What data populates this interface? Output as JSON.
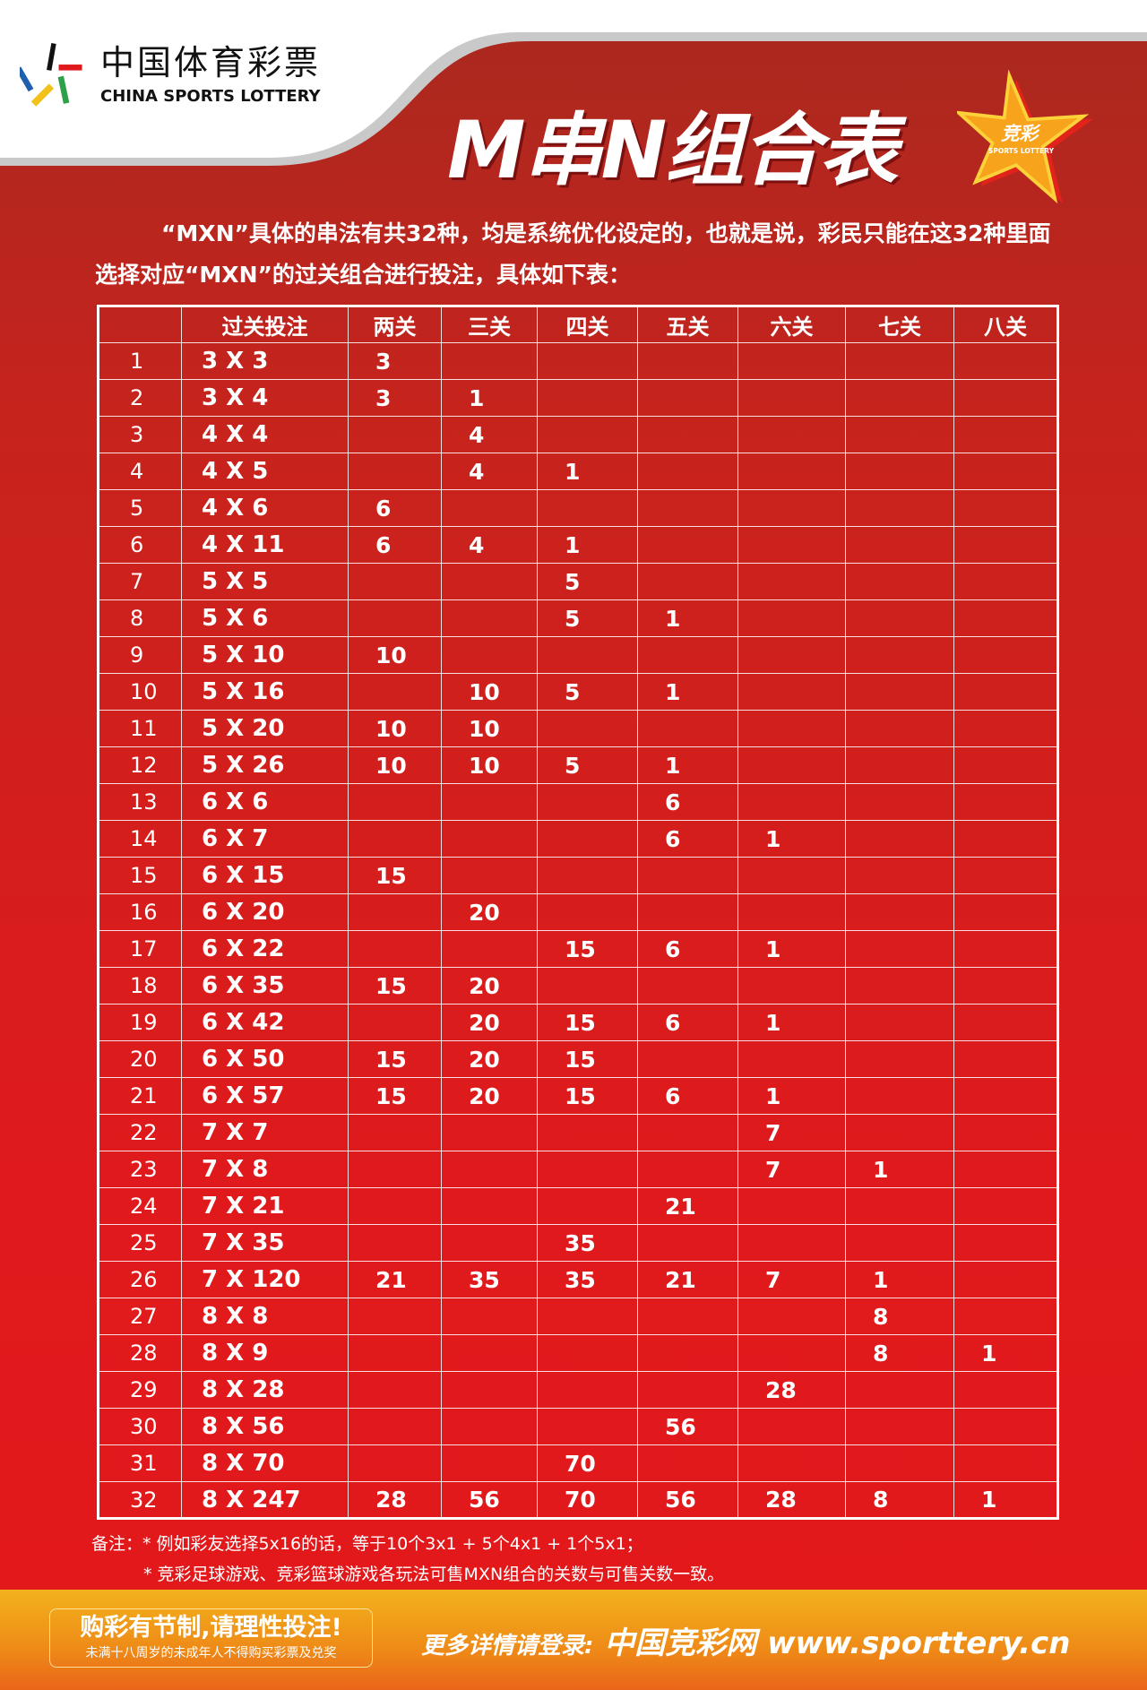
{
  "header": {
    "logo_cn": "中国体育彩票",
    "logo_en": "CHINA SPORTS LOTTERY",
    "title": "M串N组合表",
    "badge": "竞彩",
    "badge_en": "SPORTS LOTTERY"
  },
  "intro": "“MXN”具体的串法有共32种，均是系统优化设定的，也就是说，彩民只能在这32种里面选择对应“MXN”的过关组合进行投注，具体如下表：",
  "table": {
    "headers": [
      "",
      "过关投注",
      "两关",
      "三关",
      "四关",
      "五关",
      "六关",
      "七关",
      "八关"
    ],
    "rows": [
      [
        "1",
        "3 X 3",
        "3",
        "",
        "",
        "",
        "",
        "",
        ""
      ],
      [
        "2",
        "3 X 4",
        "3",
        "1",
        "",
        "",
        "",
        "",
        ""
      ],
      [
        "3",
        "4 X 4",
        "",
        "4",
        "",
        "",
        "",
        "",
        ""
      ],
      [
        "4",
        "4 X 5",
        "",
        "4",
        "1",
        "",
        "",
        "",
        ""
      ],
      [
        "5",
        "4 X 6",
        "6",
        "",
        "",
        "",
        "",
        "",
        ""
      ],
      [
        "6",
        "4 X 11",
        "6",
        "4",
        "1",
        "",
        "",
        "",
        ""
      ],
      [
        "7",
        "5 X 5",
        "",
        "",
        "5",
        "",
        "",
        "",
        ""
      ],
      [
        "8",
        "5 X 6",
        "",
        "",
        "5",
        "1",
        "",
        "",
        ""
      ],
      [
        "9",
        "5 X 10",
        "10",
        "",
        "",
        "",
        "",
        "",
        ""
      ],
      [
        "10",
        "5 X 16",
        "",
        "10",
        "5",
        "1",
        "",
        "",
        ""
      ],
      [
        "11",
        "5 X 20",
        "10",
        "10",
        "",
        "",
        "",
        "",
        ""
      ],
      [
        "12",
        "5 X 26",
        "10",
        "10",
        "5",
        "1",
        "",
        "",
        ""
      ],
      [
        "13",
        "6 X 6",
        "",
        "",
        "",
        "6",
        "",
        "",
        ""
      ],
      [
        "14",
        "6 X 7",
        "",
        "",
        "",
        "6",
        "1",
        "",
        ""
      ],
      [
        "15",
        "6 X 15",
        "15",
        "",
        "",
        "",
        "",
        "",
        ""
      ],
      [
        "16",
        "6 X 20",
        "",
        "20",
        "",
        "",
        "",
        "",
        ""
      ],
      [
        "17",
        "6 X 22",
        "",
        "",
        "15",
        "6",
        "1",
        "",
        ""
      ],
      [
        "18",
        "6 X 35",
        "15",
        "20",
        "",
        "",
        "",
        "",
        ""
      ],
      [
        "19",
        "6 X 42",
        "",
        "20",
        "15",
        "6",
        "1",
        "",
        ""
      ],
      [
        "20",
        "6 X 50",
        "15",
        "20",
        "15",
        "",
        "",
        "",
        ""
      ],
      [
        "21",
        "6 X 57",
        "15",
        "20",
        "15",
        "6",
        "1",
        "",
        ""
      ],
      [
        "22",
        "7 X 7",
        "",
        "",
        "",
        "",
        "7",
        "",
        ""
      ],
      [
        "23",
        "7 X 8",
        "",
        "",
        "",
        "",
        "7",
        "1",
        ""
      ],
      [
        "24",
        "7 X 21",
        "",
        "",
        "",
        "21",
        "",
        "",
        ""
      ],
      [
        "25",
        "7 X 35",
        "",
        "",
        "35",
        "",
        "",
        "",
        ""
      ],
      [
        "26",
        "7 X 120",
        "21",
        "35",
        "35",
        "21",
        "7",
        "1",
        ""
      ],
      [
        "27",
        "8 X 8",
        "",
        "",
        "",
        "",
        "",
        "8",
        ""
      ],
      [
        "28",
        "8 X 9",
        "",
        "",
        "",
        "",
        "",
        "8",
        "1"
      ],
      [
        "29",
        "8 X 28",
        "",
        "",
        "",
        "",
        "28",
        "",
        ""
      ],
      [
        "30",
        "8 X 56",
        "",
        "",
        "",
        "56",
        "",
        "",
        ""
      ],
      [
        "31",
        "8 X 70",
        "",
        "",
        "70",
        "",
        "",
        "",
        ""
      ],
      [
        "32",
        "8 X 247",
        "28",
        "56",
        "70",
        "56",
        "28",
        "8",
        "1"
      ]
    ]
  },
  "notes": {
    "line1": "备注：* 例如彩友选择5x16的话，等于10个3x1 + 5个4x1 + 1个5x1；",
    "line2": "* 竞彩足球游戏、竞彩篮球游戏各玩法可售MXN组合的关数与可售关数一致。"
  },
  "footer": {
    "slogan": "购彩有节制,请理性投注!",
    "warning": "未满十八周岁的未成年人不得购买彩票及兑奖",
    "site_prefix": "更多详情请登录:",
    "site_name": "中国竞彩网",
    "site_url": "www.sporttery.cn"
  },
  "colors": {
    "red": "#e01a1c",
    "dark_red": "#a8291f",
    "orange": "#ee8a17",
    "yellow": "#f3b21c"
  }
}
